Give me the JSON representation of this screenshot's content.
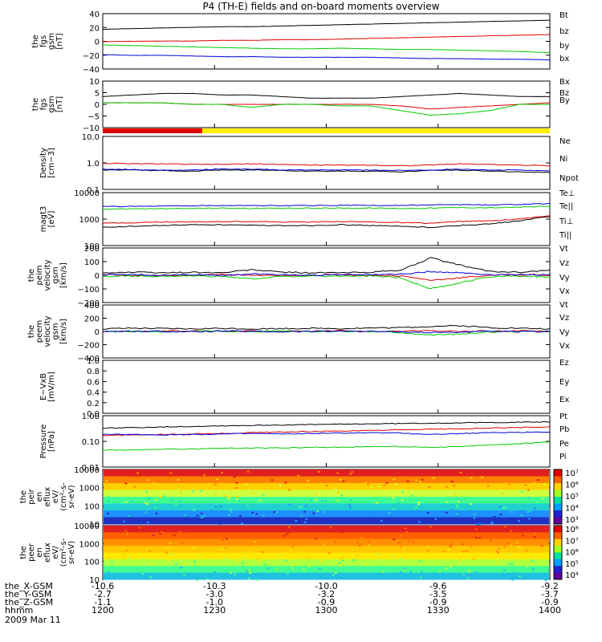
{
  "title": "P4 (TH-E) fields and on-board moments overview",
  "footer": {
    "row_labels": [
      "the_X-GSM",
      "the_Y-GSM",
      "the_Z-GSM",
      "hhmm"
    ],
    "date": "2009 Mar 11",
    "columns": [
      [
        "-10.6",
        "-10.3",
        "-10.0",
        "-9.6",
        "-9.2"
      ],
      [
        "-2.7",
        "-3.0",
        "-3.2",
        "-3.5",
        "-3.7"
      ],
      [
        "-1.1",
        "-1.0",
        "-0.9",
        "-0.9",
        "-0.9"
      ],
      [
        "1200",
        "1230",
        "1300",
        "1330",
        "1400"
      ]
    ]
  },
  "colors": {
    "black": "#000000",
    "red": "#e00000",
    "green": "#00cc00",
    "blue": "#0000dd",
    "yellow": "#ffee00"
  },
  "chart_data": [
    {
      "type": "line",
      "ylabel": [
        "the",
        "fgs",
        "gsm",
        "[nT]"
      ],
      "yticks": [
        "40",
        "20",
        "0",
        "−20",
        "−40"
      ],
      "ylim": [
        -40,
        45
      ],
      "series": [
        {
          "name": "Bt",
          "color": "#000000",
          "values": [
            21,
            22,
            23,
            24,
            25,
            25,
            26,
            27,
            28,
            29,
            30,
            31,
            32,
            33,
            34,
            35
          ]
        },
        {
          "name": "bz",
          "color": "#e00000",
          "values": [
            2,
            2.5,
            3,
            3,
            4,
            4,
            5,
            5,
            6,
            7,
            8,
            9,
            10,
            11,
            12,
            13
          ]
        },
        {
          "name": "by",
          "color": "#00cc00",
          "values": [
            -3,
            -4,
            -5,
            -6,
            -7,
            -8,
            -9,
            -9,
            -8,
            -9,
            -10,
            -10,
            -11,
            -12,
            -13,
            -15
          ]
        },
        {
          "name": "bx",
          "color": "#0000dd",
          "values": [
            -18,
            -19,
            -19,
            -20,
            -21,
            -21,
            -22,
            -22,
            -22,
            -22,
            -23,
            -24,
            -24,
            -25,
            -25,
            -26
          ]
        }
      ]
    },
    {
      "type": "line",
      "ylabel": [
        "the",
        "fgs",
        "gsm",
        "[nT]"
      ],
      "yticks": [
        "10",
        "5",
        "0",
        "−5",
        "−10"
      ],
      "ylim": [
        -14,
        16
      ],
      "series": [
        {
          "name": "Bx",
          "color": "#000000",
          "values": [
            6,
            7,
            8,
            8,
            7,
            7,
            6,
            5,
            5,
            5,
            6,
            7,
            8,
            7,
            6,
            6
          ]
        },
        {
          "name": "Bz",
          "color": "#e00000",
          "values": [
            2,
            2,
            2,
            1,
            1,
            1,
            1,
            1,
            1,
            1,
            0,
            -2,
            -1,
            0,
            1,
            2
          ]
        },
        {
          "name": "By",
          "color": "#00cc00",
          "values": [
            2,
            2,
            2,
            1,
            1,
            -1,
            1,
            1,
            0,
            0,
            -3,
            -6,
            -5,
            -3,
            1,
            1
          ]
        }
      ]
    },
    {
      "type": "line",
      "scale": "log",
      "ylabel": [
        "Density",
        "[cm−3]"
      ],
      "yticks": [
        "10.0",
        "1.0",
        "0.1"
      ],
      "ylim": [
        0.08,
        12
      ],
      "series": [
        {
          "name": "Ne",
          "color": "#e00000",
          "values": [
            0.95,
            0.9,
            0.9,
            0.85,
            0.85,
            0.9,
            0.85,
            0.8,
            0.8,
            0.8,
            0.75,
            0.8,
            0.9,
            0.85,
            0.8,
            0.75
          ]
        },
        {
          "name": "Ni",
          "color": "#000000",
          "values": [
            0.5,
            0.5,
            0.48,
            0.45,
            0.5,
            0.5,
            0.48,
            0.45,
            0.45,
            0.45,
            0.42,
            0.48,
            0.5,
            0.45,
            0.42,
            0.4
          ]
        },
        {
          "name": "Npot",
          "color": "#0000dd",
          "values": [
            0.55,
            0.52,
            0.5,
            0.5,
            0.55,
            0.55,
            0.5,
            0.5,
            0.5,
            0.5,
            0.48,
            0.5,
            0.55,
            0.5,
            0.5,
            0.45
          ]
        }
      ]
    },
    {
      "type": "line",
      "scale": "log",
      "ylabel": [
        "magt3",
        "[eV]"
      ],
      "yticks": [
        "10000",
        "1000",
        "100"
      ],
      "ylim": [
        100,
        14000
      ],
      "series": [
        {
          "name": "Te⊥",
          "color": "#e00000",
          "values": [
            800,
            850,
            900,
            900,
            950,
            950,
            900,
            900,
            950,
            900,
            850,
            800,
            950,
            1000,
            1200,
            1600
          ]
        },
        {
          "name": "Te||",
          "color": "#000000",
          "values": [
            550,
            600,
            650,
            700,
            700,
            650,
            650,
            650,
            700,
            650,
            600,
            550,
            650,
            750,
            1000,
            1500
          ]
        },
        {
          "name": "Ti⊥",
          "color": "#0000dd",
          "values": [
            3800,
            3900,
            4000,
            4100,
            4200,
            4200,
            4100,
            4200,
            4300,
            4200,
            4200,
            4400,
            4500,
            4400,
            4600,
            5000
          ]
        },
        {
          "name": "Ti||",
          "color": "#00cc00",
          "values": [
            3000,
            3100,
            3100,
            3200,
            3300,
            3200,
            3200,
            3300,
            3300,
            3300,
            3200,
            3300,
            3500,
            3400,
            3600,
            3900
          ]
        }
      ]
    },
    {
      "type": "line",
      "ylabel": [
        "the",
        "peim",
        "velocity",
        "gsm",
        "[km/s]"
      ],
      "yticks": [
        "200",
        "100",
        "0",
        "−100",
        "−200"
      ],
      "ylim": [
        -220,
        220
      ],
      "series": [
        {
          "name": "Vt",
          "color": "#000000",
          "values": [
            20,
            25,
            20,
            25,
            20,
            45,
            25,
            20,
            20,
            25,
            40,
            140,
            80,
            30,
            25,
            40
          ]
        },
        {
          "name": "Vz",
          "color": "#e00000",
          "values": [
            5,
            0,
            -5,
            0,
            5,
            0,
            -5,
            0,
            5,
            0,
            -5,
            -40,
            -20,
            0,
            5,
            0
          ]
        },
        {
          "name": "Vy",
          "color": "#00cc00",
          "values": [
            -10,
            -5,
            -10,
            -5,
            -10,
            -30,
            -10,
            -5,
            -10,
            -5,
            -20,
            -110,
            -60,
            -10,
            -5,
            -15
          ]
        },
        {
          "name": "Vx",
          "color": "#0000dd",
          "values": [
            5,
            5,
            0,
            5,
            0,
            10,
            5,
            0,
            5,
            5,
            10,
            30,
            20,
            5,
            5,
            5
          ]
        }
      ]
    },
    {
      "type": "line",
      "ylabel": [
        "the",
        "peem",
        "velocity",
        "gsm",
        "[km/s]"
      ],
      "yticks": [
        "400",
        "200",
        "0",
        "−200",
        "−400"
      ],
      "ylim": [
        -420,
        420
      ],
      "series": [
        {
          "name": "Vt",
          "color": "#000000",
          "values": [
            40,
            50,
            45,
            40,
            50,
            40,
            45,
            50,
            45,
            55,
            60,
            80,
            90,
            60,
            50,
            40
          ]
        },
        {
          "name": "Vz",
          "color": "#e00000",
          "values": [
            5,
            0,
            5,
            10,
            0,
            5,
            0,
            5,
            10,
            0,
            5,
            10,
            0,
            5,
            10,
            0
          ]
        },
        {
          "name": "Vy",
          "color": "#00cc00",
          "values": [
            -5,
            0,
            -10,
            5,
            0,
            -5,
            10,
            -5,
            0,
            -5,
            -20,
            -60,
            -40,
            -10,
            0,
            -5
          ]
        },
        {
          "name": "Vx",
          "color": "#0000dd",
          "values": [
            0,
            5,
            0,
            -5,
            5,
            0,
            -5,
            0,
            5,
            0,
            -5,
            -20,
            -10,
            0,
            -5,
            0
          ]
        }
      ]
    },
    {
      "type": "line",
      "ylabel": [
        "E−VxB",
        "[mV/m]"
      ],
      "yticks": [
        "1.0",
        "0.8",
        "0.6",
        "0.4",
        "0.2",
        "0.0"
      ],
      "ylim": [
        0,
        1
      ],
      "series": [
        {
          "name": "Ez",
          "color": "#e00000",
          "values": []
        },
        {
          "name": "Ey",
          "color": "#00cc00",
          "values": []
        },
        {
          "name": "Ex",
          "color": "#0000dd",
          "values": []
        }
      ]
    },
    {
      "type": "line",
      "scale": "log",
      "ylabel": [
        "Pressure",
        "[nPa]"
      ],
      "yticks": [
        "1.00",
        "0.10",
        "0.01"
      ],
      "ylim": [
        0.01,
        1.3
      ],
      "series": [
        {
          "name": "Pt",
          "color": "#000000",
          "values": [
            0.4,
            0.42,
            0.45,
            0.47,
            0.5,
            0.52,
            0.54,
            0.56,
            0.58,
            0.6,
            0.62,
            0.64,
            0.66,
            0.68,
            0.7,
            0.72
          ]
        },
        {
          "name": "Pb",
          "color": "#e00000",
          "values": [
            0.2,
            0.21,
            0.22,
            0.23,
            0.24,
            0.26,
            0.28,
            0.29,
            0.3,
            0.32,
            0.34,
            0.36,
            0.38,
            0.4,
            0.42,
            0.45
          ]
        },
        {
          "name": "Pe",
          "color": "#00cc00",
          "values": [
            0.05,
            0.05,
            0.055,
            0.055,
            0.06,
            0.06,
            0.062,
            0.065,
            0.065,
            0.07,
            0.07,
            0.065,
            0.07,
            0.08,
            0.09,
            0.11
          ]
        },
        {
          "name": "Pi",
          "color": "#0000dd",
          "values": [
            0.22,
            0.22,
            0.21,
            0.22,
            0.23,
            0.24,
            0.23,
            0.24,
            0.25,
            0.26,
            0.25,
            0.22,
            0.24,
            0.26,
            0.27,
            0.28
          ]
        }
      ]
    },
    {
      "type": "heatmap",
      "ylabel": [
        "the",
        "peir",
        "en",
        "eflux",
        "eV/",
        "(cm²-s-",
        "sr-eV)"
      ],
      "yticks": [
        "10000",
        "1000",
        "100",
        "10"
      ],
      "colorbar_labels": [
        "10⁷",
        "10⁶",
        "10⁵",
        "10⁴",
        "10³"
      ]
    },
    {
      "type": "heatmap",
      "ylabel": [
        "the",
        "peer",
        "en",
        "eflux",
        "eV/",
        "(cm²-s-",
        "sr-eV)"
      ],
      "yticks": [
        "10000",
        "1000",
        "100",
        "10"
      ],
      "colorbar_labels": [
        "10⁸",
        "10⁷",
        "10⁶",
        "10⁵",
        "10⁴"
      ]
    }
  ]
}
